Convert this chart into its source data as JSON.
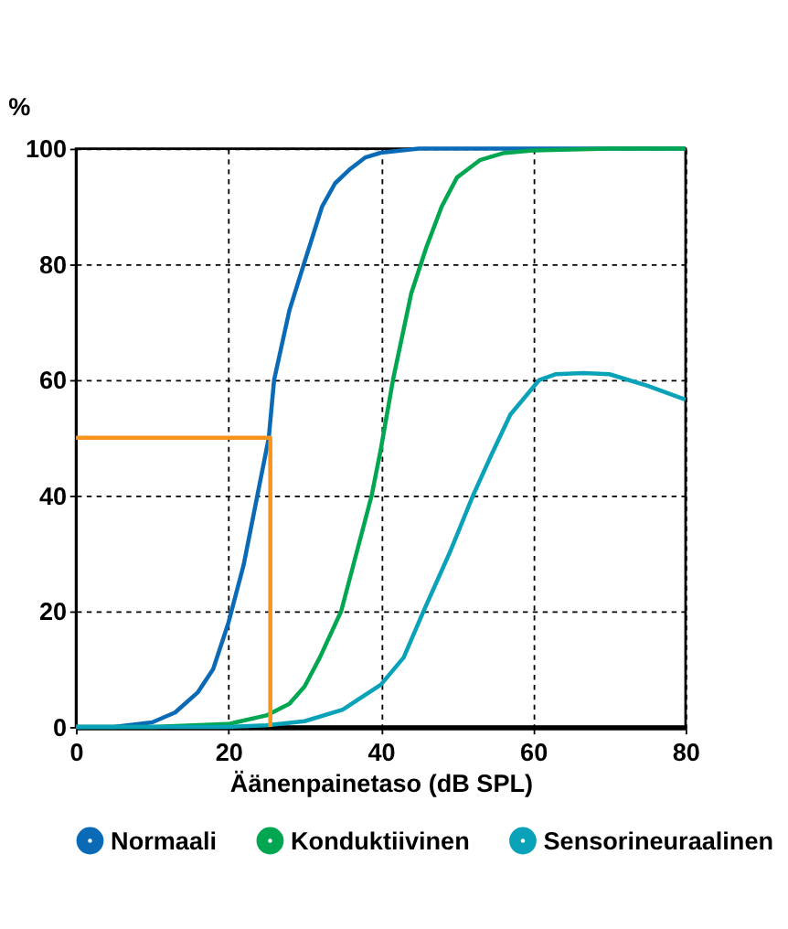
{
  "chart_data": {
    "type": "line",
    "xlabel": "Äänenpainetaso (dB SPL)",
    "ylabel": "%",
    "xlim": [
      0,
      80
    ],
    "xticks": [
      0,
      20,
      40,
      60,
      80
    ],
    "ylim": [
      0,
      100
    ],
    "yticks": [
      0,
      20,
      40,
      60,
      80,
      100
    ],
    "grid": true,
    "legend": "bottom",
    "marker": "none",
    "line_style": "solid",
    "series": [
      {
        "name": "Normaali",
        "color": "#0a6ab6",
        "x": [
          0,
          5,
          10,
          13,
          16,
          18,
          20,
          22,
          23.8,
          25.3,
          26,
          28,
          29.9,
          32.3,
          34,
          36,
          38,
          40,
          45,
          50,
          60,
          80
        ],
        "values": [
          0,
          0,
          0.8,
          2.5,
          6,
          10,
          18,
          28,
          40,
          50,
          60,
          72,
          80,
          90,
          94,
          96.5,
          98.5,
          99.3,
          100,
          100,
          100,
          100
        ]
      },
      {
        "name": "Konduktiivinen",
        "color": "#00a650",
        "x": [
          0,
          10,
          20,
          25,
          28,
          30,
          32,
          34.8,
          36.8,
          38.8,
          40,
          41.6,
          44,
          46,
          48,
          50,
          53,
          56,
          60,
          70,
          80
        ],
        "values": [
          0,
          0,
          0.5,
          2,
          4,
          7,
          12,
          20,
          30,
          40,
          48,
          60,
          75,
          83,
          90,
          95,
          98,
          99.2,
          99.7,
          100,
          100
        ]
      },
      {
        "name": "Sensorineuraalinen",
        "color": "#0aa2b8",
        "x": [
          0,
          10,
          20,
          25,
          30,
          35,
          40,
          43,
          45.6,
          49,
          52.1,
          54.5,
          57,
          60.8,
          63,
          66.6,
          70,
          75,
          80
        ],
        "values": [
          0,
          0,
          0,
          0.3,
          1,
          3,
          7.3,
          12,
          20,
          30,
          40,
          47,
          54,
          60,
          61,
          61.2,
          61,
          59,
          56.6
        ]
      },
      {
        "color": "#f7941d",
        "x": [
          0,
          25.5,
          25.5
        ],
        "values": [
          50,
          50,
          0
        ]
      }
    ]
  }
}
